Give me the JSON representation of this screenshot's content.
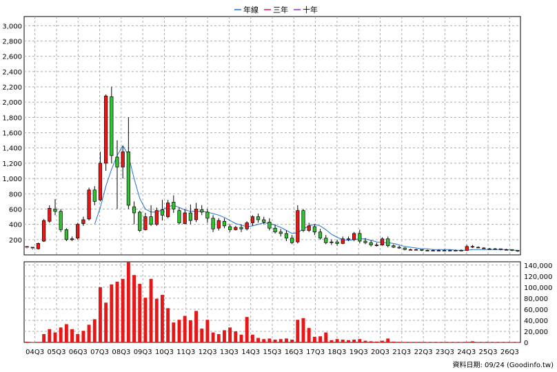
{
  "chart_data": {
    "type": "candlestick+bar",
    "title": "",
    "legend": [
      {
        "name": "年線",
        "color": "#1f6fd1"
      },
      {
        "name": "三年",
        "color": "#e0114f"
      },
      {
        "name": "十年",
        "color": "#8b2fd8"
      }
    ],
    "legend_position": "top-center",
    "grid": true,
    "price_axis": {
      "side": "left",
      "ticks": [
        "200",
        "400",
        "600",
        "800",
        "1,000",
        "1,200",
        "1,400",
        "1,600",
        "1,800",
        "2,000",
        "2,200",
        "2,400",
        "2,600",
        "2,800",
        "3,000"
      ],
      "tick_values": [
        200,
        400,
        600,
        800,
        1000,
        1200,
        1400,
        1600,
        1800,
        2000,
        2200,
        2400,
        2600,
        2800,
        3000
      ],
      "range": [
        0,
        3120
      ]
    },
    "volume_axis": {
      "side": "right",
      "ticks": [
        "0",
        "20,000",
        "40,000",
        "60,000",
        "80,000",
        "100,000",
        "120,000",
        "140,000"
      ],
      "tick_values": [
        0,
        20000,
        40000,
        60000,
        80000,
        100000,
        120000,
        140000
      ],
      "range": [
        0,
        146000
      ]
    },
    "x_labels": [
      "04Q3",
      "05Q3",
      "06Q3",
      "07Q3",
      "08Q3",
      "09Q3",
      "10Q3",
      "11Q3",
      "12Q3",
      "13Q3",
      "14Q3",
      "15Q3",
      "16Q3",
      "17Q3",
      "18Q3",
      "19Q3",
      "20Q3",
      "21Q3",
      "22Q3",
      "23Q3",
      "24Q3",
      "25Q3",
      "26Q3"
    ],
    "footer": "資料日期: 09/24 (Goodinfo.tw)",
    "candles": [
      [
        100,
        110,
        90,
        85
      ],
      [
        90,
        100,
        80,
        70
      ],
      [
        80,
        150,
        160,
        70
      ],
      [
        180,
        450,
        470,
        170
      ],
      [
        440,
        610,
        650,
        420
      ],
      [
        600,
        570,
        730,
        520
      ],
      [
        570,
        330,
        600,
        300
      ],
      [
        330,
        200,
        350,
        180
      ],
      [
        200,
        210,
        240,
        180
      ],
      [
        220,
        400,
        420,
        200
      ],
      [
        410,
        460,
        500,
        380
      ],
      [
        470,
        850,
        880,
        450
      ],
      [
        850,
        700,
        900,
        650
      ],
      [
        720,
        1200,
        1350,
        700
      ],
      [
        1200,
        2080,
        2100,
        1100
      ],
      [
        2070,
        1300,
        2200,
        1200
      ],
      [
        1280,
        1150,
        1500,
        600
      ],
      [
        1150,
        1350,
        1420,
        1000
      ],
      [
        1350,
        650,
        1800,
        600
      ],
      [
        630,
        550,
        700,
        400
      ],
      [
        560,
        320,
        580,
        300
      ],
      [
        330,
        500,
        550,
        320
      ],
      [
        500,
        400,
        650,
        380
      ],
      [
        400,
        580,
        620,
        380
      ],
      [
        590,
        520,
        720,
        450
      ],
      [
        500,
        680,
        720,
        480
      ],
      [
        690,
        600,
        780,
        550
      ],
      [
        580,
        420,
        620,
        400
      ],
      [
        410,
        550,
        600,
        400
      ],
      [
        550,
        450,
        660,
        400
      ],
      [
        460,
        600,
        680,
        430
      ],
      [
        590,
        560,
        650,
        520
      ],
      [
        560,
        480,
        600,
        420
      ],
      [
        480,
        340,
        520,
        300
      ],
      [
        350,
        450,
        480,
        320
      ],
      [
        440,
        380,
        480,
        350
      ],
      [
        370,
        330,
        400,
        300
      ],
      [
        330,
        360,
        380,
        320
      ],
      [
        360,
        340,
        400,
        300
      ],
      [
        340,
        420,
        440,
        320
      ],
      [
        420,
        500,
        520,
        380
      ],
      [
        500,
        460,
        540,
        420
      ],
      [
        460,
        430,
        500,
        400
      ],
      [
        430,
        350,
        480,
        320
      ],
      [
        350,
        300,
        400,
        280
      ],
      [
        300,
        280,
        340,
        240
      ],
      [
        280,
        220,
        320,
        180
      ],
      [
        220,
        160,
        260,
        140
      ],
      [
        170,
        580,
        650,
        150
      ],
      [
        580,
        320,
        600,
        300
      ],
      [
        320,
        380,
        420,
        300
      ],
      [
        370,
        300,
        400,
        260
      ],
      [
        300,
        220,
        340,
        200
      ],
      [
        220,
        160,
        260,
        140
      ],
      [
        160,
        170,
        200,
        130
      ],
      [
        170,
        150,
        200,
        120
      ],
      [
        150,
        210,
        240,
        140
      ],
      [
        210,
        200,
        240,
        180
      ],
      [
        200,
        280,
        300,
        180
      ],
      [
        280,
        180,
        330,
        150
      ],
      [
        180,
        160,
        220,
        140
      ],
      [
        160,
        130,
        190,
        110
      ],
      [
        130,
        130,
        160,
        110
      ],
      [
        130,
        210,
        230,
        120
      ],
      [
        210,
        120,
        240,
        100
      ],
      [
        120,
        100,
        140,
        90
      ],
      [
        100,
        90,
        120,
        80
      ],
      [
        90,
        70,
        100,
        60
      ],
      [
        70,
        70,
        80,
        60
      ],
      [
        70,
        70,
        80,
        60
      ],
      [
        70,
        60,
        70,
        50
      ],
      [
        60,
        60,
        70,
        50
      ],
      [
        60,
        60,
        70,
        50
      ],
      [
        60,
        60,
        70,
        50
      ],
      [
        60,
        60,
        70,
        50
      ],
      [
        60,
        60,
        70,
        50
      ],
      [
        60,
        60,
        70,
        50
      ],
      [
        60,
        60,
        70,
        50
      ],
      [
        60,
        110,
        130,
        50
      ],
      [
        110,
        110,
        130,
        90
      ],
      [
        100,
        100,
        110,
        90
      ],
      [
        90,
        90,
        100,
        80
      ],
      [
        80,
        80,
        90,
        70
      ],
      [
        80,
        80,
        90,
        70
      ],
      [
        80,
        70,
        80,
        60
      ],
      [
        70,
        70,
        80,
        60
      ],
      [
        70,
        60,
        70,
        50
      ],
      [
        60,
        50,
        60,
        40
      ]
    ],
    "volumes": [
      1200,
      400,
      900,
      15000,
      24000,
      18000,
      27000,
      33000,
      24000,
      15000,
      21000,
      32000,
      42000,
      100000,
      72000,
      105000,
      110000,
      115000,
      145000,
      122000,
      106000,
      81000,
      115000,
      79000,
      86000,
      62000,
      36000,
      41000,
      48000,
      40000,
      57000,
      25000,
      41000,
      18000,
      15000,
      22000,
      27000,
      20000,
      14000,
      46000,
      14000,
      8000,
      6000,
      7000,
      5000,
      6000,
      7000,
      5000,
      41000,
      44000,
      26000,
      10000,
      11000,
      18000,
      4000,
      6000,
      5000,
      4000,
      5000,
      6000,
      3000,
      2000,
      1500,
      3000,
      7000,
      1500,
      1000,
      800,
      800,
      800,
      800,
      600,
      600,
      600,
      600,
      600,
      600,
      600,
      900,
      2000,
      700,
      600,
      600,
      600,
      600,
      600,
      600,
      600
    ],
    "ma_annual": [
      null,
      null,
      null,
      null,
      null,
      null,
      null,
      null,
      null,
      null,
      null,
      null,
      400,
      620,
      900,
      1120,
      1300,
      1430,
      1300,
      1000,
      740,
      600,
      560,
      560,
      590,
      630,
      650,
      620,
      590,
      570,
      570,
      570,
      560,
      540,
      520,
      490,
      450,
      410,
      390,
      370,
      380,
      400,
      420,
      410,
      390,
      360,
      320,
      280,
      290,
      340,
      380,
      400,
      380,
      330,
      270,
      230,
      200,
      190,
      200,
      210,
      210,
      190,
      170,
      160,
      160,
      150,
      130,
      110,
      100,
      90,
      80,
      80,
      70,
      70,
      70,
      70,
      60,
      60,
      60,
      70,
      70,
      70,
      70,
      70,
      70,
      70,
      60,
      60
    ],
    "ma_three_year": [
      null,
      null,
      null,
      null,
      null,
      null,
      null,
      null,
      null,
      null,
      null,
      null,
      null,
      null,
      null,
      null,
      null,
      null,
      null,
      null,
      null,
      null,
      null,
      null,
      null,
      null,
      null,
      null,
      null,
      null,
      null,
      null,
      null,
      null,
      null,
      null,
      null,
      null,
      null,
      null,
      null,
      null,
      null,
      null,
      null,
      null,
      null,
      null,
      null,
      null,
      null,
      null,
      null,
      null,
      null,
      null,
      null,
      null,
      null,
      null,
      null,
      null,
      null,
      null,
      null,
      null,
      null,
      null,
      null,
      null,
      null,
      null,
      null,
      null,
      null,
      null,
      null,
      null,
      null,
      null,
      null,
      null,
      null,
      null,
      null,
      null,
      null,
      null
    ],
    "ma_ten_year": []
  }
}
